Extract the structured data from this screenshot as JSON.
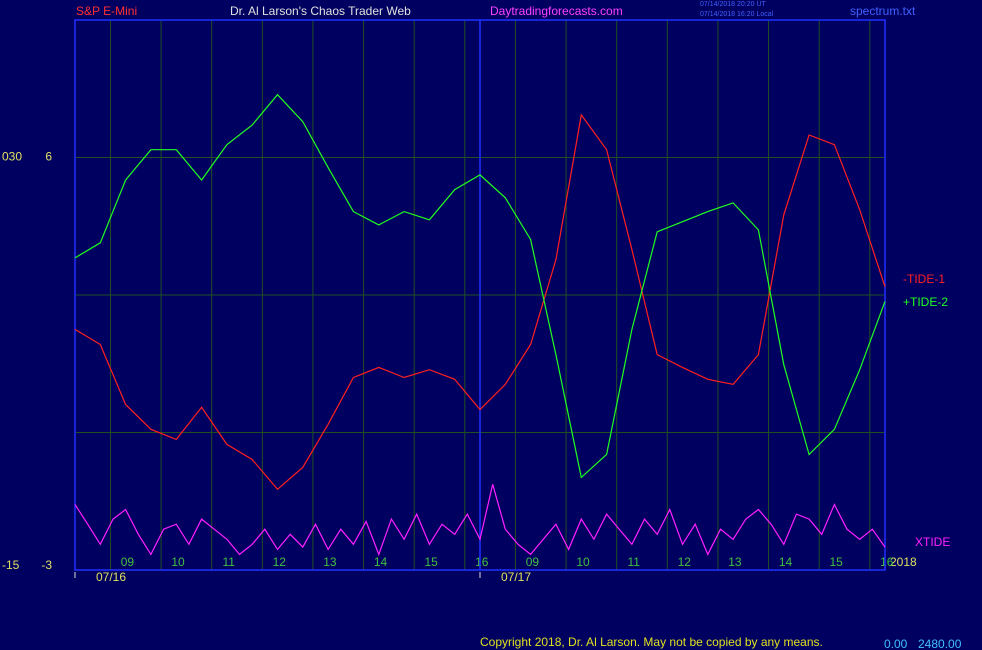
{
  "chart_data": {
    "type": "line",
    "symbol": "S&P E-Mini",
    "title": "Dr. Al Larson's Chaos Trader Web",
    "site": "Daytradingforecasts.com",
    "timestamps": [
      "07/14/2018 20:20 UT",
      "07/14/2018 16:20 Local"
    ],
    "file": "spectrum.txt",
    "year": "2018",
    "copyright": "Copyright 2018, Dr. Al Larson. May not be copied by any means.",
    "footer_values": [
      "0.00",
      "2480.00"
    ],
    "xlim": [
      0,
      16
    ],
    "xticks": [
      {
        "value": 0.7,
        "label": "09"
      },
      {
        "value": 1.7,
        "label": "10"
      },
      {
        "value": 2.7,
        "label": "11"
      },
      {
        "value": 3.7,
        "label": "12"
      },
      {
        "value": 4.7,
        "label": "13"
      },
      {
        "value": 5.7,
        "label": "14"
      },
      {
        "value": 6.7,
        "label": "15"
      },
      {
        "value": 7.7,
        "label": "16"
      },
      {
        "value": 8.7,
        "label": "09"
      },
      {
        "value": 9.7,
        "label": "10"
      },
      {
        "value": 10.7,
        "label": "11"
      },
      {
        "value": 11.7,
        "label": "12"
      },
      {
        "value": 12.7,
        "label": "13"
      },
      {
        "value": 13.7,
        "label": "14"
      },
      {
        "value": 14.7,
        "label": "15"
      },
      {
        "value": 15.7,
        "label": "16"
      }
    ],
    "date_ticks": [
      {
        "value": 0,
        "label": "07/16"
      },
      {
        "value": 8,
        "label": "07/17"
      }
    ],
    "ylim": [
      -3,
      9
    ],
    "yticks": [
      6,
      -3
    ],
    "ygrid": [
      6,
      3,
      0
    ],
    "y2lim": [
      -15,
      45
    ],
    "y2ticks": [
      {
        "value": 30,
        "label": "030"
      },
      -15
    ],
    "series": [
      {
        "name": "-TIDE-1",
        "color": "#ff2020",
        "x": [
          0,
          0.5,
          1,
          1.5,
          2,
          2.5,
          3,
          3.5,
          4,
          4.5,
          5,
          5.5,
          6,
          6.5,
          7,
          7.5,
          8,
          8.5,
          9,
          9.5,
          10,
          10.5,
          11,
          11.5,
          12,
          12.5,
          13,
          13.5,
          14,
          14.5,
          15,
          15.5,
          16
        ],
        "values": [
          2.25,
          1.92,
          0.61,
          0.07,
          -0.15,
          0.55,
          -0.26,
          -0.59,
          -1.24,
          -0.76,
          0.18,
          1.2,
          1.42,
          1.2,
          1.37,
          1.16,
          0.5,
          1.05,
          1.92,
          3.77,
          6.93,
          6.17,
          3.99,
          1.7,
          1.42,
          1.16,
          1.05,
          1.7,
          4.75,
          6.49,
          6.28,
          4.86,
          3.18
        ]
      },
      {
        "name": "+TIDE-2",
        "color": "#20ff20",
        "x": [
          0,
          0.5,
          1,
          1.5,
          2,
          2.5,
          3,
          3.5,
          4,
          4.5,
          5,
          5.5,
          6,
          6.5,
          7,
          7.5,
          8,
          8.5,
          9,
          9.5,
          10,
          10.5,
          11,
          11.5,
          12,
          12.5,
          13,
          13.5,
          14,
          14.5,
          15,
          15.5,
          16
        ],
        "values": [
          3.81,
          4.14,
          5.51,
          6.17,
          6.17,
          5.51,
          6.28,
          6.71,
          7.37,
          6.78,
          5.78,
          4.82,
          4.53,
          4.82,
          4.64,
          5.3,
          5.62,
          5.12,
          4.21,
          1.7,
          -0.98,
          -0.48,
          2.25,
          4.38,
          4.6,
          4.82,
          5.01,
          4.42,
          1.48,
          -0.48,
          0.07,
          1.37,
          2.86
        ]
      },
      {
        "name": "XTIDE",
        "color": "#ff20ff",
        "x": [
          0,
          0.25,
          0.5,
          0.75,
          1,
          1.25,
          1.5,
          1.75,
          2,
          2.25,
          2.5,
          2.75,
          3,
          3.25,
          3.5,
          3.75,
          4,
          4.25,
          4.5,
          4.75,
          5,
          5.25,
          5.5,
          5.75,
          6,
          6.25,
          6.5,
          6.75,
          7,
          7.25,
          7.5,
          7.75,
          8,
          8.25,
          8.5,
          8.75,
          9,
          9.25,
          9.5,
          9.75,
          10,
          10.25,
          10.5,
          10.75,
          11,
          11.25,
          11.5,
          11.75,
          12,
          12.25,
          12.5,
          12.75,
          13,
          13.25,
          13.5,
          13.75,
          14,
          14.25,
          14.5,
          14.75,
          15,
          15.25,
          15.5,
          15.75,
          16
        ],
        "values": [
          -1.57,
          -2.0,
          -2.44,
          -1.89,
          -1.68,
          -2.22,
          -2.66,
          -2.11,
          -2.0,
          -2.44,
          -1.89,
          -2.11,
          -2.33,
          -2.66,
          -2.44,
          -2.11,
          -2.55,
          -2.22,
          -2.5,
          -2.0,
          -2.55,
          -2.11,
          -2.44,
          -1.94,
          -2.66,
          -1.89,
          -2.33,
          -1.78,
          -2.44,
          -2.0,
          -2.22,
          -1.78,
          -2.33,
          -1.13,
          -2.11,
          -2.44,
          -2.66,
          -2.33,
          -2.0,
          -2.55,
          -1.89,
          -2.33,
          -1.78,
          -2.11,
          -2.44,
          -1.89,
          -2.22,
          -1.68,
          -2.44,
          -2.0,
          -2.66,
          -2.11,
          -2.33,
          -1.89,
          -1.68,
          -2.0,
          -2.44,
          -1.78,
          -1.89,
          -2.22,
          -1.57,
          -2.11,
          -2.33,
          -2.11,
          -2.5
        ]
      }
    ]
  }
}
